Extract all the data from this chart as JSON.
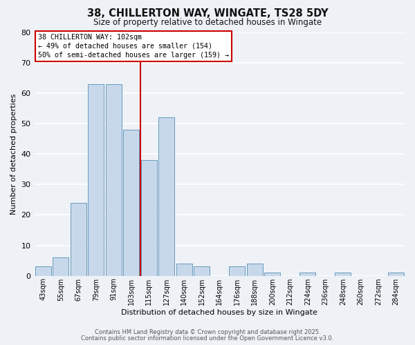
{
  "title": "38, CHILLERTON WAY, WINGATE, TS28 5DY",
  "subtitle": "Size of property relative to detached houses in Wingate",
  "xlabel": "Distribution of detached houses by size in Wingate",
  "ylabel": "Number of detached properties",
  "bar_color": "#c8d8eb",
  "bar_edge_color": "#6699bb",
  "background_color": "#eef2f7",
  "grid_color": "#ffffff",
  "categories": [
    "43sqm",
    "55sqm",
    "67sqm",
    "79sqm",
    "91sqm",
    "103sqm",
    "115sqm",
    "127sqm",
    "140sqm",
    "152sqm",
    "164sqm",
    "176sqm",
    "188sqm",
    "200sqm",
    "212sqm",
    "224sqm",
    "236sqm",
    "248sqm",
    "260sqm",
    "272sqm",
    "284sqm"
  ],
  "values": [
    3,
    6,
    24,
    63,
    63,
    48,
    38,
    52,
    4,
    3,
    0,
    3,
    4,
    1,
    0,
    1,
    0,
    1,
    0,
    0,
    1
  ],
  "ylim": [
    0,
    80
  ],
  "yticks": [
    0,
    10,
    20,
    30,
    40,
    50,
    60,
    70,
    80
  ],
  "vline_index": 5.5,
  "vline_color": "#cc0000",
  "annotation_title": "38 CHILLERTON WAY: 102sqm",
  "annotation_line1": "← 49% of detached houses are smaller (154)",
  "annotation_line2": "50% of semi-detached houses are larger (159) →",
  "annotation_box_facecolor": "#ffffff",
  "annotation_box_edgecolor": "#cc0000",
  "footer1": "Contains HM Land Registry data © Crown copyright and database right 2025.",
  "footer2": "Contains public sector information licensed under the Open Government Licence v3.0."
}
